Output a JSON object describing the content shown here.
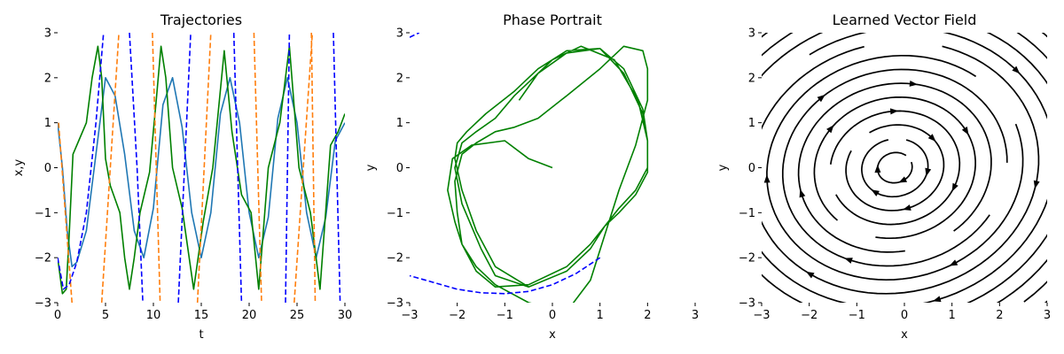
{
  "chart_data": [
    {
      "type": "line",
      "title": "Trajectories",
      "xlabel": "t",
      "ylabel": "x,y",
      "xlim": [
        0,
        30
      ],
      "ylim": [
        -3,
        3
      ],
      "xticks": [
        0,
        5,
        10,
        15,
        20,
        25,
        30
      ],
      "yticks": [
        -3,
        -2,
        -1,
        0,
        1,
        2,
        3
      ],
      "xtick_labels": [
        "0",
        "5",
        "10",
        "15",
        "20",
        "25",
        "30"
      ],
      "ytick_labels": [
        "−3",
        "−2",
        "−1",
        "0",
        "1",
        "2",
        "3"
      ],
      "series": [
        {
          "color": "#1f77b4",
          "dash": "solid",
          "x": [
            0,
            0.5,
            1,
            1.5,
            2,
            3,
            4,
            5,
            6,
            7,
            8,
            9,
            10,
            11,
            12,
            13,
            14,
            15,
            16,
            17,
            18,
            19,
            20,
            21,
            22,
            23,
            24,
            25,
            26,
            27,
            28,
            29,
            30
          ],
          "y": [
            1.0,
            0.0,
            -1.4,
            -2.2,
            -2.1,
            -1.4,
            0.3,
            2.0,
            1.6,
            0.3,
            -1.4,
            -2.0,
            -0.9,
            1.4,
            2.0,
            0.9,
            -1.0,
            -2.0,
            -1.0,
            1.2,
            2.0,
            1.0,
            -1.0,
            -2.0,
            -1.1,
            1.1,
            2.0,
            1.0,
            -1.0,
            -2.0,
            -1.1,
            0.6,
            1.0
          ]
        },
        {
          "color": "#008000",
          "dash": "solid",
          "x": [
            0,
            0.5,
            0.9,
            1.2,
            1.6,
            2.2,
            3,
            3.6,
            4.2,
            4.6,
            5,
            5.5,
            6.5,
            7,
            7.5,
            8,
            8.6,
            9.6,
            10.3,
            10.8,
            11.3,
            12,
            13,
            14.2,
            15.2,
            16.2,
            17.4,
            18.2,
            19.2,
            20.2,
            21,
            22,
            23.2,
            24.2,
            25.2,
            26.4,
            27.4,
            28.5,
            29.3,
            30
          ],
          "y": [
            -2.0,
            -2.8,
            -2.7,
            -1.5,
            0.3,
            0.6,
            1.0,
            2.0,
            2.7,
            2.0,
            0.2,
            -0.4,
            -1.0,
            -2.0,
            -2.7,
            -2.0,
            -1.0,
            -0.1,
            1.5,
            2.7,
            2.0,
            0.0,
            -0.9,
            -2.7,
            -1.2,
            0.0,
            2.6,
            0.8,
            -0.6,
            -1.0,
            -2.7,
            0.0,
            1.0,
            2.7,
            0.0,
            -1.0,
            -2.7,
            0.5,
            0.8,
            1.2
          ]
        },
        {
          "color": "#ff7f0e",
          "dash": "dashed",
          "x": [
            0.1,
            1.5,
            null,
            4.6,
            6.4,
            null,
            9.9,
            10.7,
            null,
            14.6,
            16.0,
            null,
            20.5,
            21.3,
            null,
            24.7,
            26.6,
            null,
            26.5,
            26.9
          ],
          "y": [
            1.0,
            -3.0,
            null,
            -3.0,
            3.0,
            null,
            3.0,
            -3.0,
            null,
            -3.0,
            3.0,
            null,
            3.0,
            -3.0,
            null,
            -3.0,
            3.0,
            null,
            3.0,
            -3.0
          ]
        },
        {
          "color": "#0000ff",
          "dash": "dashed",
          "x": [
            0,
            0.6,
            1.2,
            2,
            3,
            4,
            4.8,
            null,
            7.5,
            8.3,
            8.9,
            null,
            12.6,
            13.9,
            null,
            18.4,
            19.2,
            null,
            23.8,
            24.2,
            null,
            28.8,
            29.5
          ],
          "y": [
            -2.0,
            -2.7,
            -2.6,
            -2.1,
            -1.0,
            1.0,
            3.0,
            null,
            3.0,
            0.0,
            -3.0,
            null,
            -3.0,
            3.0,
            null,
            3.0,
            -3.0,
            null,
            -3.0,
            3.0,
            null,
            3.0,
            -3.0
          ]
        }
      ]
    },
    {
      "type": "line",
      "title": "Phase Portrait",
      "xlabel": "x",
      "ylabel": "y",
      "xlim": [
        -3,
        3
      ],
      "ylim": [
        -3,
        3
      ],
      "xticks": [
        -3,
        -2,
        -1,
        0,
        1,
        2,
        3
      ],
      "yticks": [
        -3,
        -2,
        -1,
        0,
        1,
        2,
        3
      ],
      "xtick_labels": [
        "−3",
        "−2",
        "−1",
        "0",
        "1",
        "2",
        "3"
      ],
      "ytick_labels": [
        "−3",
        "−2",
        "−1",
        "0",
        "1",
        "2",
        "3"
      ],
      "series": [
        {
          "color": "#008000",
          "dash": "solid",
          "x": [
            0.0,
            -0.5,
            -1.0,
            -1.7,
            -2.1,
            -2.2,
            -2.05,
            -1.9,
            -1.6,
            -1.2,
            -0.5,
            0.3,
            0.8,
            1.1,
            1.4,
            1.75,
            2.0,
            2.0,
            1.9,
            1.5,
            1.0,
            0.3,
            -0.3,
            -0.8,
            -1.2,
            -1.6,
            -1.9,
            -2.05,
            -2.0,
            -1.9,
            -1.6,
            -1.2,
            -0.5,
            0.3,
            0.8,
            1.1,
            1.4,
            1.75,
            2.0,
            2.0,
            1.9,
            1.5,
            1.0,
            0.3,
            -0.3,
            -0.8,
            -1.4,
            -1.8,
            -2.0,
            -2.05,
            -1.9,
            -1.6,
            -1.2,
            -0.5,
            0.3,
            0.8,
            1.1,
            1.4,
            1.75,
            2.0,
            2.0,
            1.9,
            1.5,
            1.0,
            0.3,
            -0.3,
            -0.8,
            -1.2,
            -1.6,
            -1.9,
            -2.05,
            -1.9,
            -1.5,
            -1.2,
            -0.5,
            0.3,
            0.8,
            1.1,
            1.4,
            1.75,
            2.0,
            2.0,
            1.8,
            1.3,
            0.6,
            0.0,
            -0.3,
            -0.5,
            -0.7
          ],
          "y": [
            0.0,
            0.2,
            0.6,
            0.5,
            0.2,
            -0.5,
            -1.2,
            -1.7,
            -2.2,
            -2.6,
            -3.0,
            -3.2,
            -2.5,
            -1.5,
            -0.5,
            0.5,
            1.5,
            2.2,
            2.6,
            2.7,
            2.2,
            1.6,
            1.1,
            0.9,
            0.8,
            0.55,
            0.3,
            -0.3,
            -1.0,
            -1.7,
            -2.3,
            -2.65,
            -2.6,
            -2.2,
            -1.7,
            -1.3,
            -1.0,
            -0.6,
            -0.1,
            0.6,
            1.2,
            2.1,
            2.65,
            2.6,
            2.2,
            1.7,
            1.2,
            0.8,
            0.55,
            0.2,
            -0.5,
            -1.4,
            -2.2,
            -2.65,
            -2.3,
            -1.8,
            -1.3,
            -0.9,
            -0.5,
            0.0,
            0.6,
            1.3,
            2.2,
            2.65,
            2.55,
            2.1,
            1.6,
            1.1,
            0.8,
            0.55,
            0.0,
            -0.8,
            -1.8,
            -2.4,
            -2.65,
            -2.3,
            -1.8,
            -1.3,
            -0.9,
            -0.5,
            0.0,
            0.6,
            1.5,
            2.4,
            2.7,
            2.4,
            2.1,
            1.8,
            1.5
          ]
        },
        {
          "color": "#0000ff",
          "dash": "dashed",
          "x": [
            -3.0,
            -2.8,
            null,
            1.0,
            0.5,
            0.0,
            -0.5,
            -1.0,
            -1.5,
            -2.0,
            -2.5,
            -3.0
          ],
          "y": [
            2.9,
            3.0,
            null,
            -2.0,
            -2.35,
            -2.6,
            -2.75,
            -2.8,
            -2.78,
            -2.7,
            -2.55,
            -2.4
          ]
        }
      ]
    },
    {
      "type": "streamplot",
      "title": "Learned Vector Field",
      "xlabel": "x",
      "ylabel": "y",
      "xlim": [
        -3,
        3
      ],
      "ylim": [
        -3,
        3
      ],
      "xticks": [
        -3,
        -2,
        -1,
        0,
        1,
        2,
        3
      ],
      "yticks": [
        -3,
        -2,
        -1,
        0,
        1,
        2,
        3
      ],
      "xtick_labels": [
        "−3",
        "−2",
        "−1",
        "0",
        "1",
        "2",
        "3"
      ],
      "ytick_labels": [
        "−3",
        "−2",
        "−1",
        "0",
        "1",
        "2",
        "3"
      ],
      "center": [
        -0.2,
        0.0
      ],
      "color": "#000000",
      "rotation": "clockwise"
    }
  ]
}
